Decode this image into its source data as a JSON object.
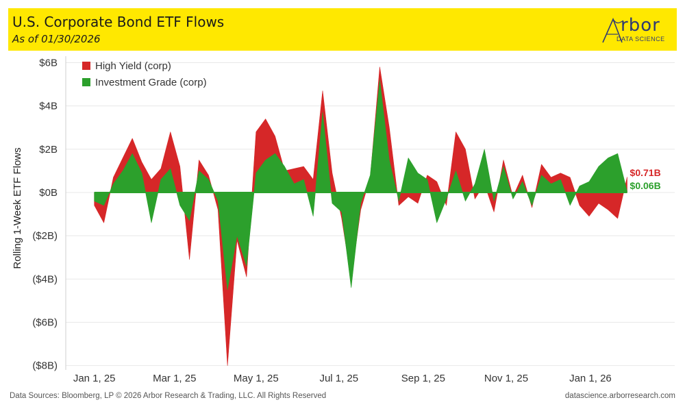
{
  "header": {
    "title": "U.S. Corporate Bond ETF Flows",
    "subtitle": "As of 01/30/2026"
  },
  "logo": {
    "word": "rbor",
    "sub": "DATA SCIENCE"
  },
  "footer": {
    "source": "Data Sources: Bloomberg, LP © 2026 Arbor Research & Trading, LLC. All Rights Reserved",
    "site": "datascience.arborresearch.com"
  },
  "colors": {
    "header_bg": "#ffe800",
    "high_yield": "#d62728",
    "investment_grade": "#2ca02c",
    "grid": "#e6e6e6"
  },
  "chart_data": {
    "type": "area",
    "title": "U.S. Corporate Bond ETF Flows",
    "ylabel": "Rolling 1-Week ETF Flows",
    "xlabel": "",
    "ylim": [
      -8.2,
      6.3
    ],
    "y_unit": "$B",
    "yticks": [
      {
        "value": 6,
        "label": "$6B"
      },
      {
        "value": 4,
        "label": "$4B"
      },
      {
        "value": 2,
        "label": "$2B"
      },
      {
        "value": 0,
        "label": "$0B"
      },
      {
        "value": -2,
        "label": "($2B)"
      },
      {
        "value": -4,
        "label": "($4B)"
      },
      {
        "value": -6,
        "label": "($6B)"
      },
      {
        "value": -8,
        "label": "($8B)"
      }
    ],
    "xlim": [
      -3,
      61
    ],
    "x_unit": "weeks since Jan 1, 2025",
    "xticks": [
      {
        "value": 0,
        "label": "Jan 1, 25"
      },
      {
        "value": 8.43,
        "label": "Mar 1, 25"
      },
      {
        "value": 17,
        "label": "May 1, 25"
      },
      {
        "value": 25.71,
        "label": "Jul 1, 25"
      },
      {
        "value": 34.57,
        "label": "Sep 1, 25"
      },
      {
        "value": 43.29,
        "label": "Nov 1, 25"
      },
      {
        "value": 52.14,
        "label": "Jan 1, 26"
      }
    ],
    "legend": {
      "position": "top-left"
    },
    "x": [
      0,
      1,
      2,
      3,
      4,
      5,
      6,
      7,
      8,
      9,
      10,
      11,
      12,
      13,
      14,
      15,
      16,
      17,
      18,
      19,
      20,
      21,
      22,
      23,
      24,
      25,
      26,
      27,
      28,
      29,
      30,
      31,
      32,
      33,
      34,
      35,
      36,
      37,
      38,
      39,
      40,
      41,
      42,
      43,
      44,
      45,
      46,
      47,
      48,
      49,
      50,
      51,
      52,
      53,
      54,
      55,
      56
    ],
    "series": [
      {
        "name": "High Yield (corp)",
        "color": "#d62728",
        "values": [
          -0.6,
          -1.4,
          0.7,
          1.6,
          2.5,
          1.4,
          0.6,
          1.1,
          2.8,
          1.2,
          -3.1,
          1.5,
          0.8,
          -0.8,
          -8.0,
          -2.2,
          -3.9,
          2.8,
          3.4,
          2.6,
          1.0,
          1.1,
          1.2,
          0.6,
          4.7,
          0.9,
          -1.2,
          -4.0,
          -0.8,
          0.7,
          5.8,
          3.0,
          -0.6,
          -0.2,
          -0.5,
          0.8,
          0.5,
          -0.6,
          2.8,
          2.0,
          -0.3,
          0.4,
          -0.9,
          1.5,
          -0.2,
          0.8,
          -0.7,
          1.3,
          0.7,
          0.9,
          0.7,
          -0.6,
          -1.1,
          -0.5,
          -0.8,
          -1.2,
          0.71
        ]
      },
      {
        "name": "Investment Grade (corp)",
        "color": "#2ca02c",
        "values": [
          -0.4,
          -0.6,
          0.4,
          1.0,
          1.8,
          0.9,
          -1.4,
          0.6,
          1.1,
          -0.6,
          -1.3,
          1.0,
          0.6,
          -0.4,
          -4.5,
          -2.0,
          -3.4,
          0.9,
          1.5,
          1.8,
          1.2,
          0.4,
          0.6,
          -1.1,
          3.7,
          -0.5,
          -0.9,
          -4.4,
          -0.5,
          0.8,
          5.2,
          1.5,
          -0.4,
          1.6,
          0.9,
          0.6,
          -1.4,
          -0.3,
          1.0,
          -0.4,
          0.4,
          2.0,
          -0.4,
          1.2,
          -0.3,
          0.5,
          -0.6,
          0.8,
          0.4,
          0.6,
          -0.6,
          0.3,
          0.5,
          1.2,
          1.6,
          1.8,
          0.06
        ]
      }
    ],
    "end_labels": [
      {
        "series": "High Yield (corp)",
        "text": "$0.71B"
      },
      {
        "series": "Investment Grade (corp)",
        "text": "$0.06B"
      }
    ]
  }
}
